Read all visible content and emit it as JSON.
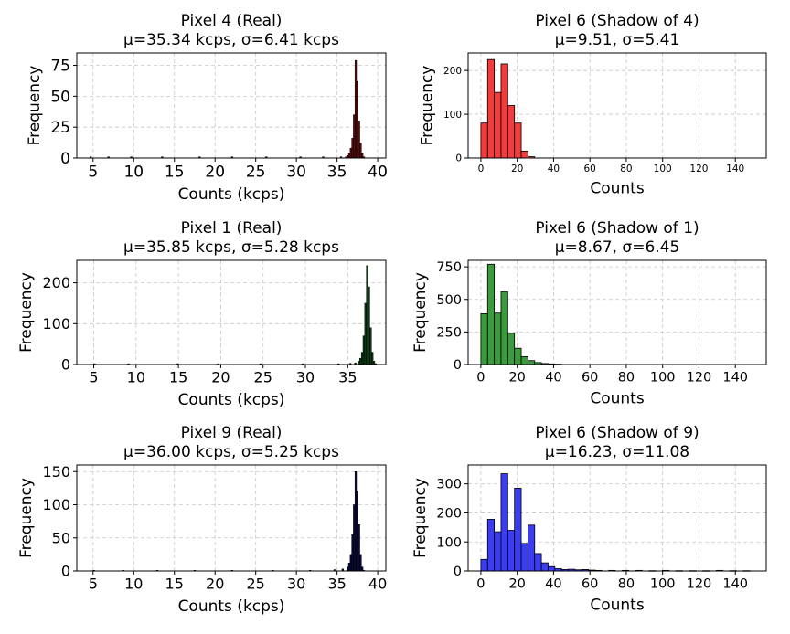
{
  "chart_data": [
    {
      "type": "bar",
      "title_line1": "Pixel 4 (Real)",
      "title_line2": "μ=35.34 kcps, σ=6.41 kcps",
      "xlabel": "Counts (kcps)",
      "ylabel": "Frequency",
      "xlim": [
        3,
        41
      ],
      "ylim": [
        0,
        85
      ],
      "xticks": [
        5,
        10,
        15,
        20,
        25,
        30,
        35,
        40
      ],
      "yticks": [
        0,
        25,
        50,
        75
      ],
      "color": "#5a0a0a",
      "edge": "#000000",
      "bin_width": 0.2,
      "bins": [
        {
          "x": 4.6,
          "v": 1
        },
        {
          "x": 6.8,
          "v": 1
        },
        {
          "x": 9.6,
          "v": 1
        },
        {
          "x": 13.4,
          "v": 1
        },
        {
          "x": 18.0,
          "v": 1
        },
        {
          "x": 22.0,
          "v": 1
        },
        {
          "x": 26.2,
          "v": 1
        },
        {
          "x": 30.4,
          "v": 1
        },
        {
          "x": 33.2,
          "v": 1
        },
        {
          "x": 35.4,
          "v": 1
        },
        {
          "x": 36.0,
          "v": 1
        },
        {
          "x": 36.2,
          "v": 2
        },
        {
          "x": 36.4,
          "v": 4
        },
        {
          "x": 36.6,
          "v": 8
        },
        {
          "x": 36.8,
          "v": 16
        },
        {
          "x": 37.0,
          "v": 35
        },
        {
          "x": 37.2,
          "v": 79
        },
        {
          "x": 37.4,
          "v": 62
        },
        {
          "x": 37.6,
          "v": 30
        },
        {
          "x": 37.8,
          "v": 12
        },
        {
          "x": 38.0,
          "v": 4
        },
        {
          "x": 38.2,
          "v": 1
        }
      ]
    },
    {
      "type": "bar",
      "title_line1": "Pixel 6 (Shadow of 4)",
      "title_line2": "μ=9.51, σ=5.41",
      "xlabel": "Counts",
      "ylabel": "Frequency",
      "xlim": [
        -7,
        157
      ],
      "ylim": [
        0,
        240
      ],
      "xticks": [
        0,
        20,
        40,
        60,
        80,
        100,
        120,
        140
      ],
      "yticks": [
        0,
        100,
        200
      ],
      "color": "#f23c3c",
      "edge": "#000000",
      "bin_width": 3.7,
      "bins": [
        {
          "x": 0,
          "v": 80
        },
        {
          "x": 3.7,
          "v": 225
        },
        {
          "x": 7.4,
          "v": 150
        },
        {
          "x": 11.1,
          "v": 215
        },
        {
          "x": 14.8,
          "v": 120
        },
        {
          "x": 18.5,
          "v": 80
        },
        {
          "x": 22.2,
          "v": 16
        },
        {
          "x": 25.9,
          "v": 3
        }
      ]
    },
    {
      "type": "bar",
      "title_line1": "Pixel 1 (Real)",
      "title_line2": "μ=35.85 kcps, σ=5.28 kcps",
      "xlabel": "Counts (kcps)",
      "ylabel": "Frequency",
      "xlim": [
        3,
        39.5
      ],
      "ylim": [
        0,
        255
      ],
      "xticks": [
        5,
        10,
        15,
        20,
        25,
        30,
        35
      ],
      "yticks": [
        0,
        100,
        200
      ],
      "color": "#0a3a12",
      "edge": "#000000",
      "bin_width": 0.2,
      "bins": [
        {
          "x": 5.0,
          "v": 2
        },
        {
          "x": 9.0,
          "v": 2
        },
        {
          "x": 14.8,
          "v": 2
        },
        {
          "x": 19.6,
          "v": 2
        },
        {
          "x": 24.6,
          "v": 2
        },
        {
          "x": 29.6,
          "v": 2
        },
        {
          "x": 33.8,
          "v": 2
        },
        {
          "x": 35.2,
          "v": 3
        },
        {
          "x": 35.8,
          "v": 4
        },
        {
          "x": 36.2,
          "v": 8
        },
        {
          "x": 36.4,
          "v": 15
        },
        {
          "x": 36.6,
          "v": 30
        },
        {
          "x": 36.8,
          "v": 70
        },
        {
          "x": 37.0,
          "v": 150
        },
        {
          "x": 37.2,
          "v": 242
        },
        {
          "x": 37.4,
          "v": 190
        },
        {
          "x": 37.6,
          "v": 90
        },
        {
          "x": 37.8,
          "v": 30
        },
        {
          "x": 38.0,
          "v": 8
        },
        {
          "x": 38.2,
          "v": 2
        }
      ]
    },
    {
      "type": "bar",
      "title_line1": "Pixel 6 (Shadow of 1)",
      "title_line2": "μ=8.67, σ=6.45",
      "xlabel": "Counts",
      "ylabel": "Frequency",
      "xlim": [
        -7,
        157
      ],
      "ylim": [
        0,
        800
      ],
      "xticks": [
        0,
        20,
        40,
        60,
        80,
        100,
        120,
        140
      ],
      "yticks": [
        0,
        250,
        500,
        750
      ],
      "color": "#3c9a3c",
      "edge": "#000000",
      "bin_width": 3.7,
      "bins": [
        {
          "x": 0,
          "v": 390
        },
        {
          "x": 3.7,
          "v": 770
        },
        {
          "x": 7.4,
          "v": 395
        },
        {
          "x": 11.1,
          "v": 560
        },
        {
          "x": 14.8,
          "v": 240
        },
        {
          "x": 18.5,
          "v": 125
        },
        {
          "x": 22.2,
          "v": 60
        },
        {
          "x": 25.9,
          "v": 30
        },
        {
          "x": 29.6,
          "v": 15
        },
        {
          "x": 33.3,
          "v": 8
        },
        {
          "x": 37.0,
          "v": 5
        },
        {
          "x": 40.7,
          "v": 3
        }
      ]
    },
    {
      "type": "bar",
      "title_line1": "Pixel 9 (Real)",
      "title_line2": "μ=36.00 kcps, σ=5.25 kcps",
      "xlabel": "Counts (kcps)",
      "ylabel": "Frequency",
      "xlim": [
        3,
        41
      ],
      "ylim": [
        0,
        160
      ],
      "xticks": [
        5,
        10,
        15,
        20,
        25,
        30,
        35,
        40
      ],
      "yticks": [
        0,
        50,
        100,
        150
      ],
      "color": "#0a0a3a",
      "edge": "#000000",
      "bin_width": 0.2,
      "bins": [
        {
          "x": 5.0,
          "v": 1
        },
        {
          "x": 8.6,
          "v": 1
        },
        {
          "x": 12.8,
          "v": 1
        },
        {
          "x": 17.4,
          "v": 1
        },
        {
          "x": 22.0,
          "v": 1
        },
        {
          "x": 27.0,
          "v": 1
        },
        {
          "x": 31.6,
          "v": 1
        },
        {
          "x": 34.6,
          "v": 2
        },
        {
          "x": 35.6,
          "v": 3
        },
        {
          "x": 36.2,
          "v": 6
        },
        {
          "x": 36.4,
          "v": 12
        },
        {
          "x": 36.6,
          "v": 25
        },
        {
          "x": 36.8,
          "v": 55
        },
        {
          "x": 37.0,
          "v": 100
        },
        {
          "x": 37.2,
          "v": 150
        },
        {
          "x": 37.4,
          "v": 120
        },
        {
          "x": 37.6,
          "v": 70
        },
        {
          "x": 37.8,
          "v": 25
        },
        {
          "x": 38.0,
          "v": 6
        },
        {
          "x": 38.2,
          "v": 1
        }
      ]
    },
    {
      "type": "bar",
      "title_line1": "Pixel 6 (Shadow of 9)",
      "title_line2": "μ=16.23, σ=11.08",
      "xlabel": "Counts",
      "ylabel": "Frequency",
      "xlim": [
        -7,
        157
      ],
      "ylim": [
        0,
        365
      ],
      "xticks": [
        0,
        20,
        40,
        60,
        80,
        100,
        120,
        140
      ],
      "yticks": [
        0,
        100,
        200,
        300
      ],
      "color": "#3c3cf2",
      "edge": "#000000",
      "bin_width": 3.7,
      "bins": [
        {
          "x": 0,
          "v": 40
        },
        {
          "x": 3.7,
          "v": 178
        },
        {
          "x": 7.4,
          "v": 135
        },
        {
          "x": 11.1,
          "v": 335
        },
        {
          "x": 14.8,
          "v": 140
        },
        {
          "x": 18.5,
          "v": 285
        },
        {
          "x": 22.2,
          "v": 95
        },
        {
          "x": 25.9,
          "v": 158
        },
        {
          "x": 29.6,
          "v": 60
        },
        {
          "x": 33.3,
          "v": 28
        },
        {
          "x": 37.0,
          "v": 15
        },
        {
          "x": 40.7,
          "v": 8
        },
        {
          "x": 44.4,
          "v": 5
        },
        {
          "x": 48.1,
          "v": 6
        },
        {
          "x": 51.8,
          "v": 4
        },
        {
          "x": 55.5,
          "v": 5
        },
        {
          "x": 59.2,
          "v": 3
        },
        {
          "x": 62.9,
          "v": 2
        },
        {
          "x": 70.3,
          "v": 2
        },
        {
          "x": 77.7,
          "v": 2
        },
        {
          "x": 85.1,
          "v": 2
        },
        {
          "x": 92.5,
          "v": 1
        },
        {
          "x": 99.9,
          "v": 2
        },
        {
          "x": 107.3,
          "v": 1
        },
        {
          "x": 114.7,
          "v": 1
        },
        {
          "x": 122.1,
          "v": 1
        },
        {
          "x": 129.5,
          "v": 2
        },
        {
          "x": 136.9,
          "v": 1
        },
        {
          "x": 144.3,
          "v": 1
        }
      ]
    }
  ]
}
